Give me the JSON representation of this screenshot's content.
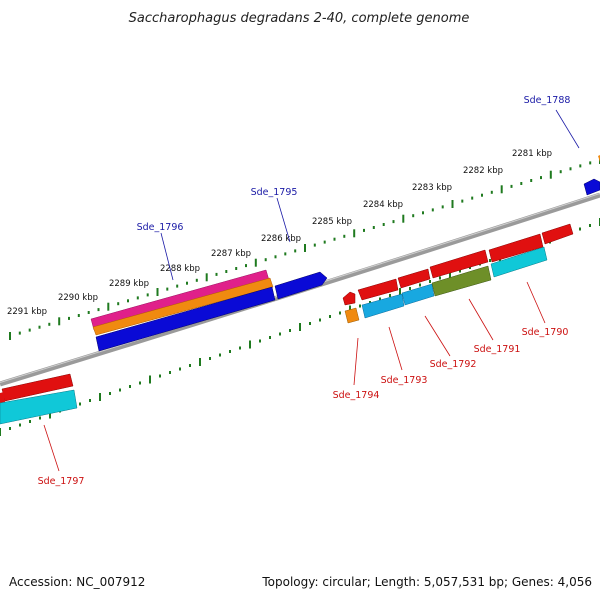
{
  "title": "Saccharophagus degradans 2-40, complete genome",
  "footer": {
    "accession": "Accession: NC_007912",
    "summary": "Topology: circular; Length: 5,057,531 bp; Genes: 4,056"
  },
  "scale_labels": [
    "2281 kbp",
    "2282 kbp",
    "2283 kbp",
    "2284 kbp",
    "2285 kbp",
    "2286 kbp",
    "2287 kbp",
    "2288 kbp",
    "2289 kbp",
    "2290 kbp",
    "2291 kbp"
  ],
  "forward_gene_labels": [
    "Sde_1788",
    "Sde_1795",
    "Sde_1796"
  ],
  "reverse_gene_labels": [
    "Sde_1790",
    "Sde_1791",
    "Sde_1792",
    "Sde_1793",
    "Sde_1794",
    "Sde_1797"
  ],
  "colors": {
    "backbone": "#8a8a8a",
    "tick": "#1f7a1f",
    "forward_label": "#1a1aa6",
    "reverse_label": "#cc1111",
    "red_feature": "#e01010",
    "blue_feature": "#0a0ad6",
    "cyan_feature": "#10c8d8",
    "sky_feature": "#18a8e0",
    "olive_feature": "#6e8f28",
    "orange_feature": "#f08a10",
    "magenta_feature": "#e0208a"
  }
}
